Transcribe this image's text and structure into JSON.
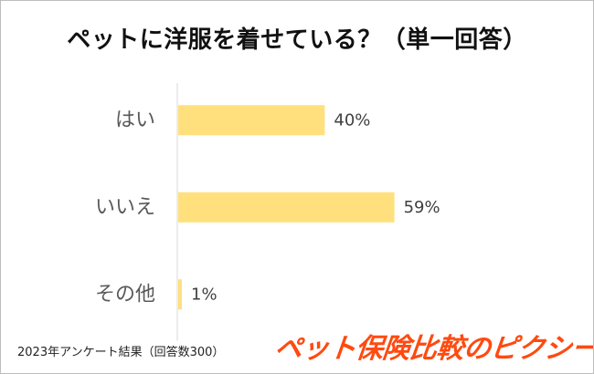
{
  "chart_data": {
    "type": "bar",
    "orientation": "horizontal",
    "title": "ペットに洋服を着せている？（単一回答）",
    "categories": [
      "はい",
      "いいえ",
      "その他"
    ],
    "values": [
      40,
      59,
      1
    ],
    "value_labels": [
      "40%",
      "59%",
      "1%"
    ],
    "unit": "%",
    "xlim": [
      0,
      100
    ],
    "grid": false,
    "legend": "none",
    "bar_color": "#ffe07c"
  },
  "footnote": "2023年アンケート結果（回答数300）",
  "brand": "ペット保険比較のピクシー",
  "colors": {
    "title": "#111111",
    "category_label": "#595959",
    "value_label": "#404040",
    "axis": "#d9d9d9",
    "brand": "#ff4a10"
  }
}
